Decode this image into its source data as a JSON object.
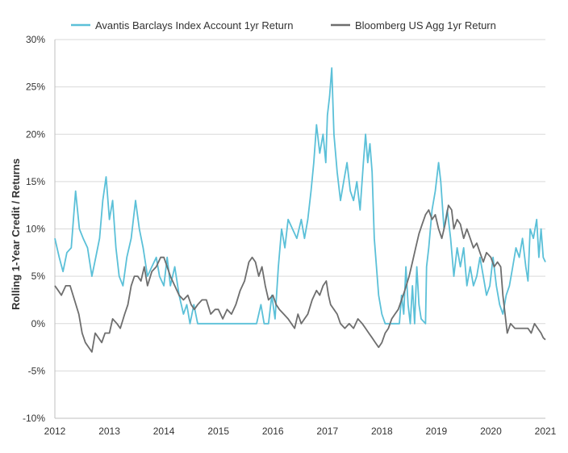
{
  "chart_data": {
    "type": "line",
    "title": "",
    "xlabel": "",
    "ylabel": "Rolling 1-Year Credit / Returns",
    "xlim": [
      2012,
      2021
    ],
    "ylim": [
      -10,
      30
    ],
    "x_ticks": [
      "2012",
      "2013",
      "2014",
      "2015",
      "2016",
      "2017",
      "2018",
      "2019",
      "2020",
      "2021"
    ],
    "y_ticks": [
      "-10%",
      "-5%",
      "0%",
      "5%",
      "10%",
      "15%",
      "20%",
      "25%",
      "30%"
    ],
    "grid": "horizontal",
    "legend_position": "top",
    "series": [
      {
        "name": "Avantis Barclays Index Account 1yr Return",
        "color": "#5bc0d8",
        "points": [
          [
            2012.0,
            9.0
          ],
          [
            2012.08,
            7.0
          ],
          [
            2012.15,
            5.5
          ],
          [
            2012.22,
            7.5
          ],
          [
            2012.3,
            8.0
          ],
          [
            2012.38,
            14.0
          ],
          [
            2012.45,
            10.0
          ],
          [
            2012.52,
            9.0
          ],
          [
            2012.6,
            8.0
          ],
          [
            2012.68,
            5.0
          ],
          [
            2012.75,
            7.0
          ],
          [
            2012.82,
            9.0
          ],
          [
            2012.88,
            13.0
          ],
          [
            2012.94,
            15.5
          ],
          [
            2013.0,
            11.0
          ],
          [
            2013.06,
            13.0
          ],
          [
            2013.12,
            8.0
          ],
          [
            2013.18,
            5.0
          ],
          [
            2013.25,
            4.0
          ],
          [
            2013.32,
            7.0
          ],
          [
            2013.4,
            9.0
          ],
          [
            2013.48,
            13.0
          ],
          [
            2013.55,
            10.0
          ],
          [
            2013.62,
            8.0
          ],
          [
            2013.7,
            5.0
          ],
          [
            2013.78,
            6.0
          ],
          [
            2013.86,
            7.0
          ],
          [
            2013.92,
            5.0
          ],
          [
            2014.0,
            4.0
          ],
          [
            2014.06,
            7.0
          ],
          [
            2014.12,
            4.0
          ],
          [
            2014.2,
            6.0
          ],
          [
            2014.28,
            3.0
          ],
          [
            2014.36,
            1.0
          ],
          [
            2014.42,
            2.0
          ],
          [
            2014.48,
            0.0
          ],
          [
            2014.55,
            2.0
          ],
          [
            2014.62,
            0.0
          ],
          [
            2014.7,
            0.0
          ],
          [
            2014.8,
            0.0
          ],
          [
            2015.0,
            0.0
          ],
          [
            2015.2,
            0.0
          ],
          [
            2015.4,
            0.0
          ],
          [
            2015.6,
            0.0
          ],
          [
            2015.7,
            0.0
          ],
          [
            2015.78,
            2.0
          ],
          [
            2015.84,
            0.0
          ],
          [
            2015.92,
            0.0
          ],
          [
            2015.98,
            3.0
          ],
          [
            2016.04,
            0.5
          ],
          [
            2016.1,
            6.0
          ],
          [
            2016.16,
            10.0
          ],
          [
            2016.22,
            8.0
          ],
          [
            2016.28,
            11.0
          ],
          [
            2016.36,
            10.0
          ],
          [
            2016.44,
            9.0
          ],
          [
            2016.52,
            11.0
          ],
          [
            2016.58,
            9.0
          ],
          [
            2016.64,
            11.0
          ],
          [
            2016.7,
            14.0
          ],
          [
            2016.75,
            17.0
          ],
          [
            2016.8,
            21.0
          ],
          [
            2016.86,
            18.0
          ],
          [
            2016.92,
            20.0
          ],
          [
            2016.97,
            17.0
          ],
          [
            2017.0,
            22.0
          ],
          [
            2017.04,
            24.0
          ],
          [
            2017.08,
            27.0
          ],
          [
            2017.12,
            20.0
          ],
          [
            2017.18,
            16.0
          ],
          [
            2017.24,
            13.0
          ],
          [
            2017.3,
            15.0
          ],
          [
            2017.36,
            17.0
          ],
          [
            2017.42,
            14.0
          ],
          [
            2017.48,
            13.0
          ],
          [
            2017.54,
            15.0
          ],
          [
            2017.6,
            12.0
          ],
          [
            2017.66,
            17.0
          ],
          [
            2017.7,
            20.0
          ],
          [
            2017.74,
            17.0
          ],
          [
            2017.78,
            19.0
          ],
          [
            2017.82,
            16.0
          ],
          [
            2017.86,
            9.0
          ],
          [
            2017.9,
            6.0
          ],
          [
            2017.94,
            3.0
          ],
          [
            2018.0,
            1.0
          ],
          [
            2018.06,
            0.0
          ],
          [
            2018.15,
            0.0
          ],
          [
            2018.25,
            0.0
          ],
          [
            2018.32,
            0.0
          ],
          [
            2018.36,
            3.0
          ],
          [
            2018.4,
            1.0
          ],
          [
            2018.44,
            6.0
          ],
          [
            2018.48,
            2.0
          ],
          [
            2018.52,
            0.0
          ],
          [
            2018.56,
            4.0
          ],
          [
            2018.6,
            0.0
          ],
          [
            2018.64,
            6.0
          ],
          [
            2018.68,
            2.0
          ],
          [
            2018.72,
            0.5
          ],
          [
            2018.8,
            0.0
          ],
          [
            2018.82,
            6.0
          ],
          [
            2018.86,
            8.0
          ],
          [
            2018.92,
            12.0
          ],
          [
            2018.98,
            14.0
          ],
          [
            2019.04,
            17.0
          ],
          [
            2019.08,
            15.0
          ],
          [
            2019.14,
            10.0
          ],
          [
            2019.2,
            12.0
          ],
          [
            2019.26,
            9.0
          ],
          [
            2019.32,
            5.0
          ],
          [
            2019.38,
            8.0
          ],
          [
            2019.44,
            6.0
          ],
          [
            2019.5,
            8.0
          ],
          [
            2019.56,
            4.0
          ],
          [
            2019.62,
            6.0
          ],
          [
            2019.68,
            4.0
          ],
          [
            2019.74,
            5.0
          ],
          [
            2019.8,
            7.0
          ],
          [
            2019.86,
            5.0
          ],
          [
            2019.92,
            3.0
          ],
          [
            2019.98,
            4.0
          ],
          [
            2020.04,
            7.0
          ],
          [
            2020.1,
            4.0
          ],
          [
            2020.16,
            2.0
          ],
          [
            2020.22,
            1.0
          ],
          [
            2020.28,
            3.0
          ],
          [
            2020.34,
            4.0
          ],
          [
            2020.4,
            6.0
          ],
          [
            2020.46,
            8.0
          ],
          [
            2020.52,
            7.0
          ],
          [
            2020.58,
            9.0
          ],
          [
            2020.64,
            6.0
          ],
          [
            2020.68,
            4.5
          ],
          [
            2020.72,
            10.0
          ],
          [
            2020.78,
            9.0
          ],
          [
            2020.84,
            11.0
          ],
          [
            2020.88,
            7.0
          ],
          [
            2020.92,
            10.0
          ],
          [
            2020.96,
            7.0
          ],
          [
            2021.0,
            6.5
          ]
        ]
      },
      {
        "name": "Bloomberg US Agg 1yr Return",
        "color": "#6e6e6e",
        "points": [
          [
            2012.0,
            4.0
          ],
          [
            2012.06,
            3.5
          ],
          [
            2012.12,
            3.0
          ],
          [
            2012.2,
            4.0
          ],
          [
            2012.28,
            4.0
          ],
          [
            2012.36,
            2.5
          ],
          [
            2012.44,
            1.0
          ],
          [
            2012.5,
            -1.0
          ],
          [
            2012.56,
            -2.0
          ],
          [
            2012.62,
            -2.5
          ],
          [
            2012.68,
            -3.0
          ],
          [
            2012.74,
            -1.0
          ],
          [
            2012.8,
            -1.5
          ],
          [
            2012.86,
            -2.0
          ],
          [
            2012.92,
            -1.0
          ],
          [
            2013.0,
            -1.0
          ],
          [
            2013.06,
            0.5
          ],
          [
            2013.14,
            0.0
          ],
          [
            2013.2,
            -0.5
          ],
          [
            2013.28,
            1.0
          ],
          [
            2013.34,
            2.0
          ],
          [
            2013.4,
            4.0
          ],
          [
            2013.46,
            5.0
          ],
          [
            2013.52,
            5.0
          ],
          [
            2013.58,
            4.5
          ],
          [
            2013.64,
            6.0
          ],
          [
            2013.7,
            4.0
          ],
          [
            2013.78,
            5.5
          ],
          [
            2013.86,
            6.0
          ],
          [
            2013.94,
            7.0
          ],
          [
            2014.0,
            7.0
          ],
          [
            2014.06,
            6.0
          ],
          [
            2014.12,
            5.0
          ],
          [
            2014.2,
            4.0
          ],
          [
            2014.28,
            3.0
          ],
          [
            2014.36,
            2.5
          ],
          [
            2014.44,
            3.0
          ],
          [
            2014.5,
            2.0
          ],
          [
            2014.56,
            1.5
          ],
          [
            2014.62,
            2.0
          ],
          [
            2014.7,
            2.5
          ],
          [
            2014.78,
            2.5
          ],
          [
            2014.86,
            1.0
          ],
          [
            2014.94,
            1.5
          ],
          [
            2015.0,
            1.5
          ],
          [
            2015.08,
            0.5
          ],
          [
            2015.16,
            1.5
          ],
          [
            2015.24,
            1.0
          ],
          [
            2015.32,
            2.0
          ],
          [
            2015.4,
            3.5
          ],
          [
            2015.48,
            4.5
          ],
          [
            2015.56,
            6.5
          ],
          [
            2015.62,
            7.0
          ],
          [
            2015.68,
            6.5
          ],
          [
            2015.74,
            5.0
          ],
          [
            2015.8,
            6.0
          ],
          [
            2015.86,
            4.0
          ],
          [
            2015.92,
            2.5
          ],
          [
            2016.0,
            3.0
          ],
          [
            2016.06,
            2.0
          ],
          [
            2016.12,
            1.5
          ],
          [
            2016.2,
            1.0
          ],
          [
            2016.28,
            0.5
          ],
          [
            2016.34,
            0.0
          ],
          [
            2016.4,
            -0.5
          ],
          [
            2016.46,
            1.0
          ],
          [
            2016.52,
            0.0
          ],
          [
            2016.58,
            0.5
          ],
          [
            2016.64,
            1.0
          ],
          [
            2016.72,
            2.5
          ],
          [
            2016.8,
            3.5
          ],
          [
            2016.86,
            3.0
          ],
          [
            2016.92,
            4.0
          ],
          [
            2016.98,
            4.5
          ],
          [
            2017.02,
            3.0
          ],
          [
            2017.06,
            2.0
          ],
          [
            2017.12,
            1.5
          ],
          [
            2017.18,
            1.0
          ],
          [
            2017.24,
            0.0
          ],
          [
            2017.32,
            -0.5
          ],
          [
            2017.4,
            0.0
          ],
          [
            2017.48,
            -0.5
          ],
          [
            2017.56,
            0.5
          ],
          [
            2017.64,
            0.0
          ],
          [
            2017.7,
            -0.5
          ],
          [
            2017.76,
            -1.0
          ],
          [
            2017.82,
            -1.5
          ],
          [
            2017.88,
            -2.0
          ],
          [
            2017.94,
            -2.5
          ],
          [
            2018.0,
            -2.0
          ],
          [
            2018.06,
            -1.0
          ],
          [
            2018.12,
            -0.5
          ],
          [
            2018.18,
            0.5
          ],
          [
            2018.24,
            1.0
          ],
          [
            2018.3,
            1.5
          ],
          [
            2018.36,
            2.5
          ],
          [
            2018.42,
            3.5
          ],
          [
            2018.5,
            5.0
          ],
          [
            2018.56,
            6.5
          ],
          [
            2018.62,
            8.0
          ],
          [
            2018.68,
            9.5
          ],
          [
            2018.74,
            10.5
          ],
          [
            2018.8,
            11.5
          ],
          [
            2018.86,
            12.0
          ],
          [
            2018.92,
            11.0
          ],
          [
            2018.98,
            11.5
          ],
          [
            2019.04,
            10.0
          ],
          [
            2019.1,
            9.0
          ],
          [
            2019.16,
            10.5
          ],
          [
            2019.22,
            12.5
          ],
          [
            2019.28,
            12.0
          ],
          [
            2019.32,
            10.0
          ],
          [
            2019.38,
            11.0
          ],
          [
            2019.44,
            10.5
          ],
          [
            2019.5,
            9.0
          ],
          [
            2019.56,
            10.0
          ],
          [
            2019.62,
            9.0
          ],
          [
            2019.68,
            8.0
          ],
          [
            2019.74,
            8.5
          ],
          [
            2019.8,
            7.5
          ],
          [
            2019.86,
            6.5
          ],
          [
            2019.92,
            7.5
          ],
          [
            2020.0,
            7.0
          ],
          [
            2020.06,
            6.0
          ],
          [
            2020.12,
            6.5
          ],
          [
            2020.18,
            6.0
          ],
          [
            2020.22,
            3.0
          ],
          [
            2020.26,
            1.0
          ],
          [
            2020.3,
            -1.0
          ],
          [
            2020.36,
            0.0
          ],
          [
            2020.44,
            -0.5
          ],
          [
            2020.52,
            -0.5
          ],
          [
            2020.6,
            -0.5
          ],
          [
            2020.68,
            -0.5
          ],
          [
            2020.74,
            -1.0
          ],
          [
            2020.8,
            0.0
          ],
          [
            2020.86,
            -0.5
          ],
          [
            2020.92,
            -1.0
          ],
          [
            2020.96,
            -1.5
          ],
          [
            2021.0,
            -1.7
          ]
        ]
      }
    ]
  }
}
